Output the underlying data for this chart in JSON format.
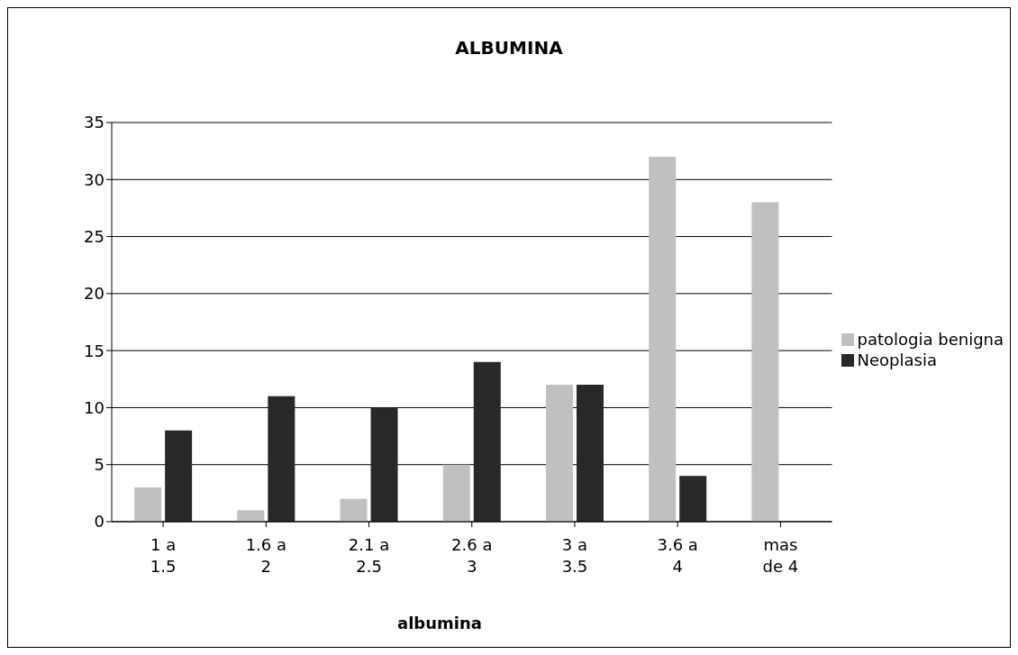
{
  "chart_data": {
    "type": "bar",
    "title": "ALBUMINA",
    "xlabel": "albumina",
    "categories": [
      "1 a 1.5",
      "1.6 a 2",
      "2.1 a 2.5",
      "2.6 a 3",
      "3 a 3.5",
      "3.6 a 4",
      "mas de 4"
    ],
    "series": [
      {
        "name": "patologia benigna",
        "color": "#c0c0c0",
        "values": [
          3,
          1,
          2,
          5,
          12,
          32,
          28
        ]
      },
      {
        "name": "Neoplasia",
        "color": "#282828",
        "values": [
          8,
          11,
          10,
          14,
          12,
          4,
          0
        ]
      }
    ],
    "ylim": [
      0,
      35
    ],
    "yticks": [
      0,
      5,
      10,
      15,
      20,
      25,
      30,
      35
    ],
    "grid": "y",
    "legend": "right"
  }
}
